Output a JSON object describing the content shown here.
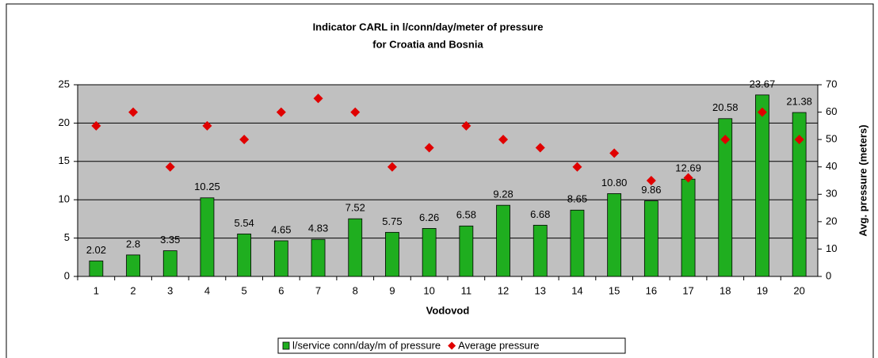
{
  "chart_data": {
    "type": "bar",
    "title": [
      "Indicator CARL in l/conn/day/meter of pressure",
      "for Croatia and Bosnia"
    ],
    "xlabel": "Vodovod",
    "y2label": "Avg. pressure (meters)",
    "categories": [
      "1",
      "2",
      "3",
      "4",
      "5",
      "6",
      "7",
      "8",
      "9",
      "10",
      "11",
      "12",
      "13",
      "14",
      "15",
      "16",
      "17",
      "18",
      "19",
      "20"
    ],
    "series": [
      {
        "name": "l/service conn/day/m of pressure",
        "type": "bar",
        "color": "#1fae1f",
        "values": [
          2.02,
          2.8,
          3.35,
          10.25,
          5.54,
          4.65,
          4.83,
          7.52,
          5.75,
          6.26,
          6.58,
          9.28,
          6.68,
          8.65,
          10.8,
          9.86,
          12.69,
          20.58,
          23.67,
          21.38
        ],
        "value_labels": [
          "2.02",
          "2.8",
          "3.35",
          "10.25",
          "5.54",
          "4.65",
          "4.83",
          "7.52",
          "5.75",
          "6.26",
          "6.58",
          "9.28",
          "6.68",
          "8.65",
          "10.80",
          "9.86",
          "12.69",
          "20.58",
          "23.67",
          "21.38"
        ]
      },
      {
        "name": "Average pressure",
        "type": "scatter",
        "axis": "y2",
        "color": "#e00000",
        "values": [
          55,
          60,
          40,
          55,
          50,
          60,
          65,
          60,
          40,
          47,
          55,
          50,
          47,
          40,
          45,
          35,
          36,
          50,
          60,
          50
        ]
      }
    ],
    "ylim": [
      0,
      25
    ],
    "yticks": [
      0,
      5,
      10,
      15,
      20,
      25
    ],
    "y2lim": [
      0,
      70
    ],
    "y2ticks": [
      0,
      10,
      20,
      30,
      40,
      50,
      60,
      70
    ],
    "grid": true,
    "legend": "bottom"
  }
}
